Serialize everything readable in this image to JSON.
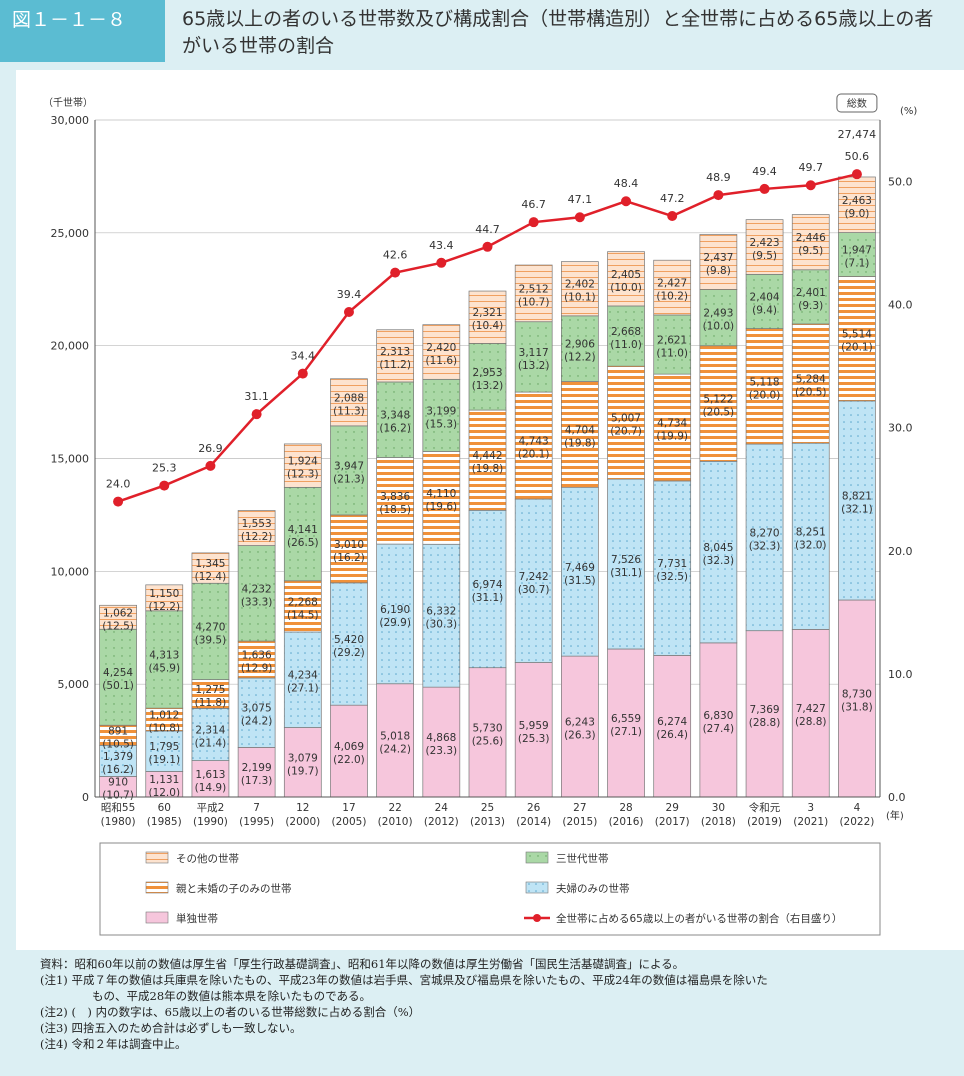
{
  "header": {
    "figure_no": "図１－１－８",
    "title": "65歳以上の者のいる世帯数及び構成割合（世帯構造別）と全世帯に占める65歳以上の者がいる世帯の割合"
  },
  "chart_data": {
    "type": "bar",
    "stacked": true,
    "left_axis_unit": "（千世帯）",
    "right_axis_unit": "(%)",
    "x_unit": "(年)",
    "ylim": [
      0,
      30000
    ],
    "yticks": [
      0,
      5000,
      10000,
      15000,
      20000,
      25000,
      30000
    ],
    "y2lim": [
      0,
      55
    ],
    "y2ticks": [
      "0.0",
      "10.0",
      "20.0",
      "30.0",
      "40.0",
      "50.0"
    ],
    "grid": true,
    "categories": [
      [
        "昭和55",
        "(1980)"
      ],
      [
        "60",
        "(1985)"
      ],
      [
        "平成2",
        "(1990)"
      ],
      [
        "7",
        "(1995)"
      ],
      [
        "12",
        "(2000)"
      ],
      [
        "17",
        "(2005)"
      ],
      [
        "22",
        "(2010)"
      ],
      [
        "24",
        "(2012)"
      ],
      [
        "25",
        "(2013)"
      ],
      [
        "26",
        "(2014)"
      ],
      [
        "27",
        "(2015)"
      ],
      [
        "28",
        "(2016)"
      ],
      [
        "29",
        "(2017)"
      ],
      [
        "30",
        "(2018)"
      ],
      [
        "令和元",
        "(2019)"
      ],
      [
        "3",
        "(2021)"
      ],
      [
        "4",
        "(2022)"
      ]
    ],
    "series": [
      {
        "name": "単独世帯",
        "color": "#f6c6dc",
        "values": [
          910,
          1131,
          1613,
          2199,
          3079,
          4069,
          5018,
          4868,
          5730,
          5959,
          6243,
          6559,
          6274,
          6830,
          7369,
          7427,
          8730
        ],
        "pct": [
          "10.7",
          "12.0",
          "14.9",
          "17.3",
          "19.7",
          "22.0",
          "24.2",
          "23.3",
          "25.6",
          "25.3",
          "26.3",
          "27.1",
          "26.4",
          "27.4",
          "28.8",
          "28.8",
          "31.8"
        ]
      },
      {
        "name": "夫婦のみの世帯",
        "color": "#bfe4f5",
        "values": [
          1379,
          1795,
          2314,
          3075,
          4234,
          5420,
          6190,
          6332,
          6974,
          7242,
          7469,
          7526,
          7731,
          8045,
          8270,
          8251,
          8821
        ],
        "pct": [
          "16.2",
          "19.1",
          "21.4",
          "24.2",
          "27.1",
          "29.2",
          "29.9",
          "30.3",
          "31.1",
          "30.7",
          "31.5",
          "31.1",
          "32.5",
          "32.3",
          "32.3",
          "32.0",
          "32.1"
        ]
      },
      {
        "name": "親と未婚の子のみの世帯",
        "color": "#f0913a",
        "values": [
          891,
          1012,
          1275,
          1636,
          2268,
          3010,
          3836,
          4110,
          4442,
          4743,
          4704,
          5007,
          4734,
          5122,
          5118,
          5284,
          5514
        ],
        "pct": [
          "10.5",
          "10.8",
          "11.8",
          "12.9",
          "14.5",
          "16.2",
          "18.5",
          "19.6",
          "19.8",
          "20.1",
          "19.8",
          "20.7",
          "19.9",
          "20.5",
          "20.0",
          "20.5",
          "20.1"
        ]
      },
      {
        "name": "三世代世帯",
        "color": "#aad8a6",
        "values": [
          4254,
          4313,
          4270,
          4232,
          4141,
          3947,
          3348,
          3199,
          2953,
          3117,
          2906,
          2668,
          2621,
          2493,
          2404,
          2401,
          1947
        ],
        "pct": [
          "50.1",
          "45.9",
          "39.5",
          "33.3",
          "26.5",
          "21.3",
          "16.2",
          "15.3",
          "13.2",
          "13.2",
          "12.2",
          "11.0",
          "11.0",
          "10.0",
          "9.4",
          "9.3",
          "7.1"
        ]
      },
      {
        "name": "その他の世帯",
        "color": "#fde3cf",
        "values": [
          1062,
          1150,
          1345,
          1553,
          1924,
          2088,
          2313,
          2420,
          2321,
          2512,
          2402,
          2405,
          2427,
          2437,
          2423,
          2446,
          2463
        ],
        "pct": [
          "12.5",
          "12.2",
          "12.4",
          "12.2",
          "12.3",
          "11.3",
          "11.2",
          "11.6",
          "10.4",
          "10.7",
          "10.1",
          "10.0",
          "10.2",
          "9.8",
          "9.5",
          "9.5",
          "9.0"
        ]
      }
    ],
    "line": {
      "name": "全世帯に占める65歳以上の者がいる世帯の割合（右目盛り）",
      "color": "#e0202a",
      "values": [
        "24.0",
        "25.3",
        "26.9",
        "31.1",
        "34.4",
        "39.4",
        "42.6",
        "43.4",
        "44.7",
        "46.7",
        "47.1",
        "48.4",
        "47.2",
        "48.9",
        "49.4",
        "49.7",
        "50.6"
      ]
    },
    "total_callout": {
      "label": "総数",
      "value": "27,474"
    },
    "legend_order": [
      "その他の世帯",
      "三世代世帯",
      "親と未婚の子のみの世帯",
      "夫婦のみの世帯",
      "単独世帯",
      "全世帯に占める65歳以上の者がいる世帯の割合（右目盛り）"
    ]
  },
  "notes": [
    "資料：昭和60年以前の数値は厚生省「厚生行政基礎調査」、昭和61年以降の数値は厚生労働省「国民生活基礎調査」による。",
    "(注1) 平成７年の数値は兵庫県を除いたもの、平成23年の数値は岩手県、宮城県及び福島県を除いたもの、平成24年の数値は福島県を除いた",
    "もの、平成28年の数値は熊本県を除いたものである。",
    "(注2) (　) 内の数字は、65歳以上の者のいる世帯総数に占める割合（%）",
    "(注3) 四捨五入のため合計は必ずしも一致しない。",
    "(注4) 令和２年は調査中止。"
  ]
}
